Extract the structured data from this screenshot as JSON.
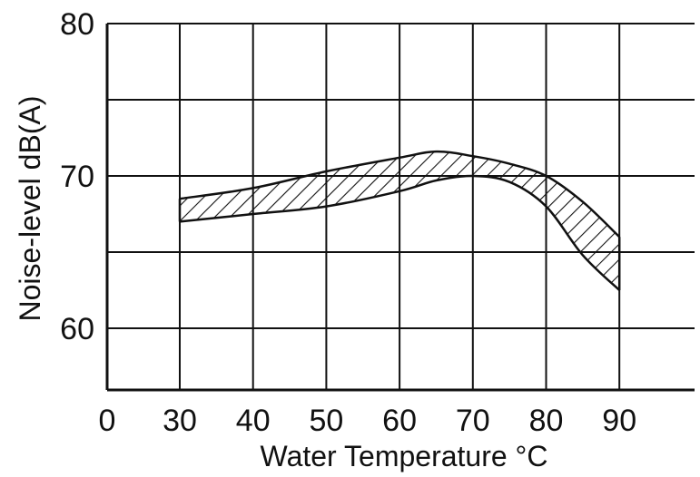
{
  "chart_data": {
    "type": "area",
    "xlabel": "Water Temperature °C",
    "ylabel": "Noise-level dB(A)",
    "x_ticks": [
      0,
      30,
      40,
      50,
      60,
      70,
      80,
      90
    ],
    "y_ticks": [
      60,
      70,
      80
    ],
    "xlim": [
      0,
      100
    ],
    "ylim": [
      56,
      80
    ],
    "grid": true,
    "band": {
      "upper": [
        {
          "x": 30,
          "y": 68.5
        },
        {
          "x": 40,
          "y": 69.2
        },
        {
          "x": 50,
          "y": 70.3
        },
        {
          "x": 60,
          "y": 71.2
        },
        {
          "x": 65,
          "y": 71.6
        },
        {
          "x": 70,
          "y": 71.3
        },
        {
          "x": 75,
          "y": 70.8
        },
        {
          "x": 80,
          "y": 70.0
        },
        {
          "x": 85,
          "y": 68.3
        },
        {
          "x": 90,
          "y": 66.0
        }
      ],
      "lower": [
        {
          "x": 30,
          "y": 67.0
        },
        {
          "x": 40,
          "y": 67.5
        },
        {
          "x": 50,
          "y": 68.0
        },
        {
          "x": 60,
          "y": 69.0
        },
        {
          "x": 65,
          "y": 69.7
        },
        {
          "x": 70,
          "y": 70.0
        },
        {
          "x": 75,
          "y": 69.6
        },
        {
          "x": 80,
          "y": 68.0
        },
        {
          "x": 85,
          "y": 64.8
        },
        {
          "x": 90,
          "y": 62.5
        }
      ]
    }
  }
}
